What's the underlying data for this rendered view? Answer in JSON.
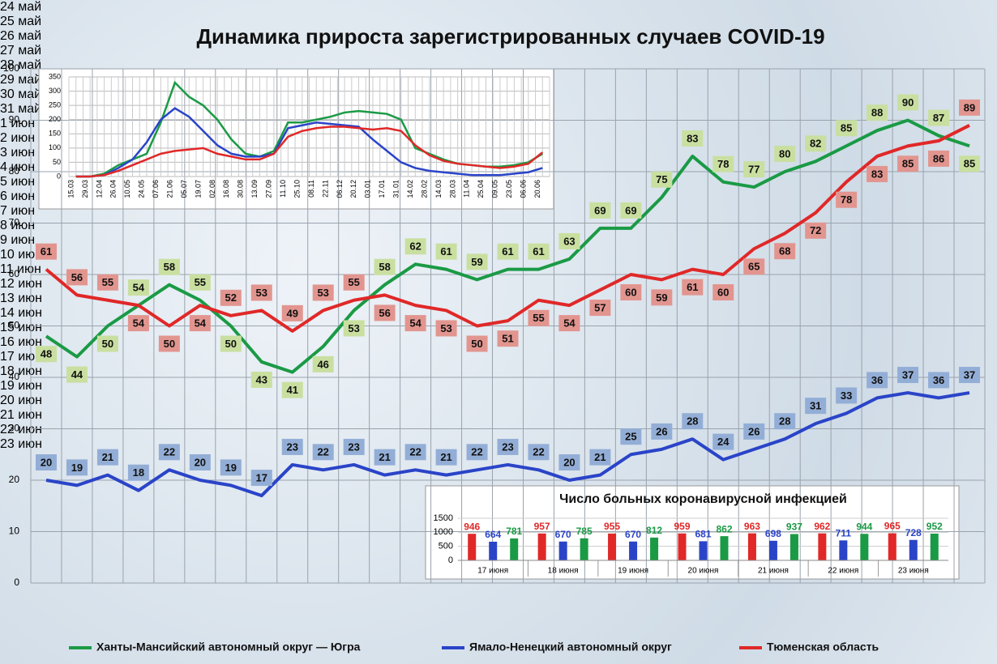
{
  "chart_data": [
    {
      "type": "line",
      "title": "Динамика прироста зарегистрированных случаев COVID-19",
      "categories": [
        "24\nмай",
        "25\nмай",
        "26\nмай",
        "27\nмай",
        "28\nмай",
        "29\nмай",
        "30\nмай",
        "31\nмай",
        "1 июн",
        "2 июн",
        "3 июн",
        "4 июн",
        "5 июн",
        "6 июн",
        "7 июн",
        "8 июн",
        "9 июн",
        "10\nиюн",
        "11\nиюн",
        "12\nиюн",
        "13\nиюн",
        "14\nиюн",
        "15\nиюн",
        "16\nиюн",
        "17\nиюн",
        "18\nиюн",
        "19\nиюн",
        "20\nиюн",
        "21\nиюн",
        "22\nиюн",
        "23\nиюн"
      ],
      "series": [
        {
          "name": "Ханты-Мансийский автономный округ — Югра",
          "color": "#1a9a45",
          "label_color": "#c9dfa0",
          "values": [
            48,
            44,
            50,
            54,
            58,
            55,
            50,
            43,
            41,
            46,
            53,
            58,
            62,
            61,
            59,
            61,
            61,
            63,
            69,
            69,
            75,
            83,
            78,
            77,
            80,
            82,
            85,
            88,
            90,
            87,
            85
          ]
        },
        {
          "name": "Ямало-Ненецкий автономный округ",
          "color": "#2a44c8",
          "label_color": "#93aed6",
          "values": [
            20,
            19,
            21,
            18,
            22,
            20,
            19,
            17,
            23,
            22,
            23,
            21,
            22,
            21,
            22,
            23,
            22,
            20,
            21,
            25,
            26,
            28,
            24,
            26,
            28,
            31,
            33,
            36,
            37,
            36,
            37
          ]
        },
        {
          "name": "Тюменская область",
          "color": "#e02828",
          "label_color": "#e2958f",
          "values": [
            61,
            56,
            55,
            54,
            50,
            54,
            52,
            53,
            49,
            53,
            55,
            56,
            54,
            53,
            50,
            51,
            55,
            54,
            57,
            60,
            59,
            61,
            60,
            65,
            68,
            72,
            78,
            83,
            85,
            86,
            89
          ]
        }
      ],
      "ylim": [
        0,
        100
      ],
      "yticks": [
        0,
        10,
        20,
        30,
        40,
        50,
        60,
        70,
        80,
        90,
        100
      ],
      "grid": true
    },
    {
      "type": "line",
      "categories": [
        "15.03",
        "29.03",
        "12.04",
        "26.04",
        "10.05",
        "24.05",
        "07.06",
        "21.06",
        "05.07",
        "19.07",
        "02.08",
        "16.08",
        "30.08",
        "13.09",
        "27.09",
        "11.10",
        "25.10",
        "08.11",
        "22.11",
        "06.12",
        "20.12",
        "03.01",
        "17.01",
        "31.01",
        "14.02",
        "28.02",
        "14.03",
        "28.03",
        "11.04",
        "25.04",
        "09.05",
        "23.05",
        "06.06",
        "20.06"
      ],
      "series": [
        {
          "color": "#1a9a45",
          "values": [
            0,
            0,
            10,
            40,
            60,
            80,
            190,
            330,
            280,
            250,
            200,
            130,
            80,
            70,
            90,
            190,
            190,
            200,
            210,
            225,
            230,
            225,
            220,
            200,
            100,
            80,
            60,
            45,
            40,
            35,
            35,
            40,
            50,
            80
          ]
        },
        {
          "color": "#2a44c8",
          "values": [
            0,
            0,
            5,
            30,
            60,
            120,
            200,
            240,
            210,
            160,
            110,
            80,
            70,
            70,
            80,
            170,
            180,
            190,
            185,
            180,
            175,
            130,
            90,
            50,
            30,
            20,
            15,
            10,
            5,
            5,
            5,
            10,
            15,
            30
          ]
        },
        {
          "color": "#e02828",
          "values": [
            0,
            0,
            5,
            20,
            40,
            60,
            80,
            90,
            95,
            100,
            80,
            70,
            60,
            60,
            80,
            140,
            160,
            170,
            175,
            175,
            170,
            165,
            170,
            160,
            110,
            75,
            55,
            45,
            40,
            35,
            30,
            35,
            45,
            85
          ]
        }
      ],
      "ylim": [
        0,
        350
      ],
      "yticks": [
        0,
        50,
        100,
        150,
        200,
        250,
        300,
        350
      ],
      "grid": true
    },
    {
      "type": "bar",
      "title": "Число больных коронавирусной  инфекцией",
      "categories": [
        "17 июня",
        "18 июня",
        "19 июня",
        "20 июня",
        "21 июня",
        "22 июня",
        "23 июня"
      ],
      "series": [
        {
          "color": "#e02828",
          "values": [
            946,
            957,
            955,
            959,
            963,
            962,
            965
          ]
        },
        {
          "color": "#2a44c8",
          "values": [
            664,
            670,
            670,
            681,
            698,
            711,
            728
          ]
        },
        {
          "color": "#1a9a45",
          "values": [
            781,
            785,
            812,
            862,
            937,
            944,
            952
          ]
        }
      ],
      "ylim": [
        0,
        1500
      ],
      "yticks": [
        0,
        500,
        1000,
        1500
      ],
      "grid": true
    }
  ]
}
